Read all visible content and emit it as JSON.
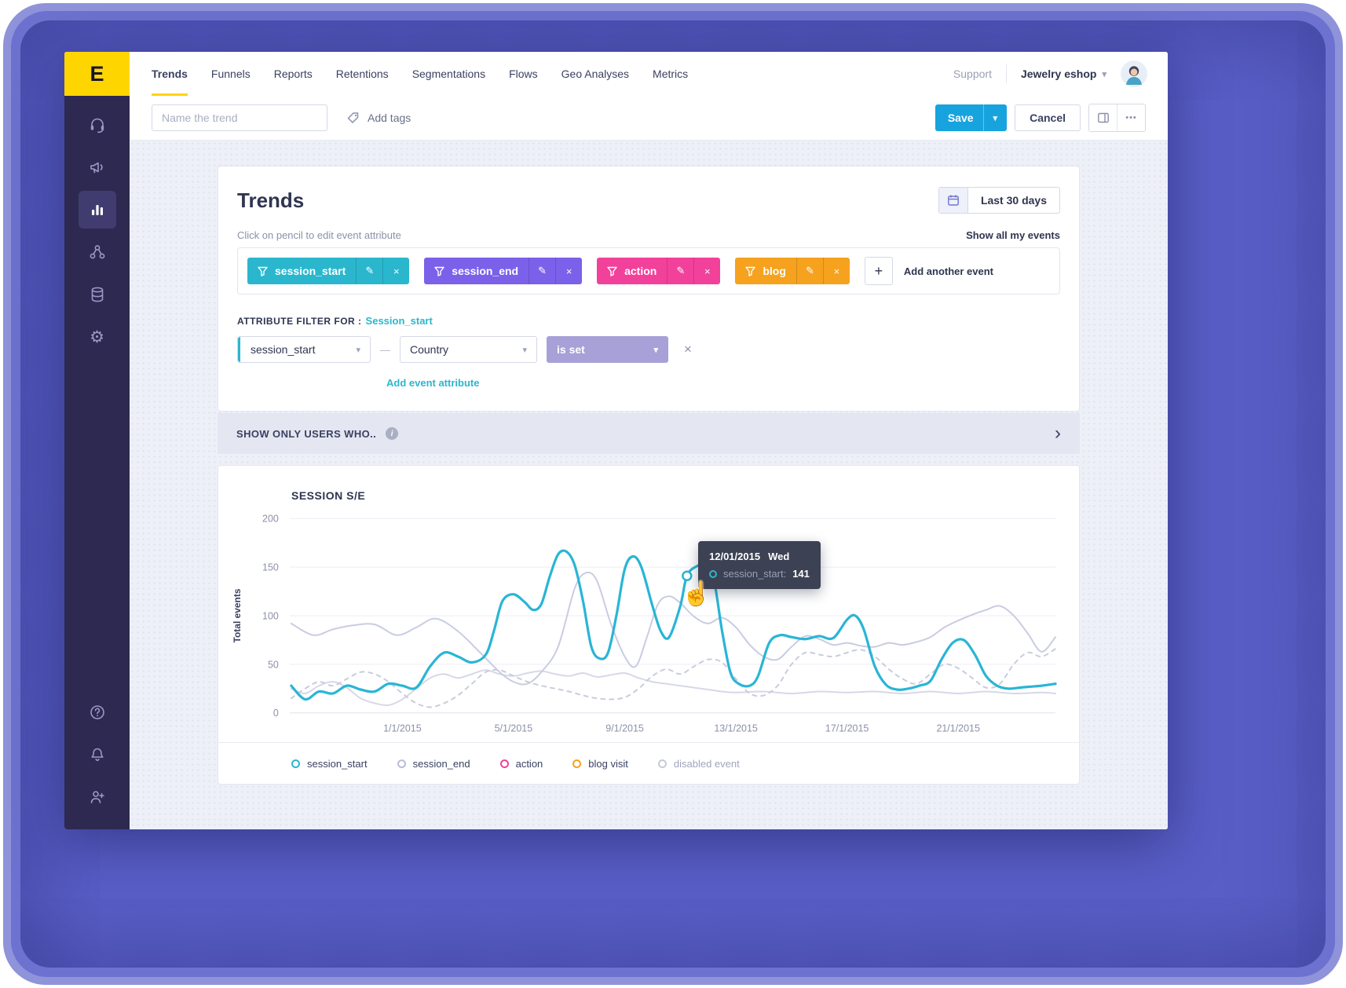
{
  "nav": {
    "logo_letter": "E",
    "items": [
      {
        "label": "Trends",
        "active": true
      },
      {
        "label": "Funnels"
      },
      {
        "label": "Reports"
      },
      {
        "label": "Retentions"
      },
      {
        "label": "Segmentations"
      },
      {
        "label": "Flows"
      },
      {
        "label": "Geo Analyses"
      },
      {
        "label": "Metrics"
      }
    ],
    "support_label": "Support",
    "workspace": "Jewelry eshop"
  },
  "toolbar": {
    "trend_name_placeholder": "Name the trend",
    "add_tags_label": "Add tags",
    "save_label": "Save",
    "cancel_label": "Cancel"
  },
  "sidebar": {
    "icons": [
      "headset",
      "megaphone",
      "bar-chart",
      "segments",
      "database",
      "gear"
    ],
    "bottom_icons": [
      "help",
      "bell",
      "invite-user"
    ],
    "active_icon": "bar-chart"
  },
  "trends": {
    "title": "Trends",
    "date_range_label": "Last 30 days",
    "hint": "Click on pencil to edit event attribute",
    "show_all_label": "Show all my events",
    "events": [
      {
        "label": "session_start",
        "color": "#2ab7ce"
      },
      {
        "label": "session_end",
        "color": "#7b61ea"
      },
      {
        "label": "action",
        "color": "#f2419b"
      },
      {
        "label": "blog",
        "color": "#f6a21e"
      }
    ],
    "add_another_label": "Add another event",
    "attr_filter_label": "ATTRIBUTE FILTER FOR :",
    "attr_filter_event": "Session_start",
    "filter_event_value": "session_start",
    "filter_attribute_value": "Country",
    "filter_operator_value": "is set",
    "add_attribute_label": "Add event attribute"
  },
  "show_only": {
    "label": "SHOW ONLY USERS WHO.."
  },
  "chart": {
    "title": "SESSION S/E",
    "legend": [
      {
        "label": "session_start",
        "color": "#2ab7ce",
        "muted": false
      },
      {
        "label": "session_end",
        "color": "#b9bcdd",
        "muted": false
      },
      {
        "label": "action",
        "color": "#f2419b",
        "muted": false
      },
      {
        "label": "blog visit",
        "color": "#f6a21e",
        "muted": false
      },
      {
        "label": "disabled event",
        "color": "#c6c9d8",
        "muted": true
      }
    ]
  },
  "tooltip": {
    "date": "12/01/2015",
    "weekday": "Wed",
    "series_label": "session_start:",
    "value": "141",
    "color": "#2ab7ce"
  },
  "glyphs": {
    "caret_down": "▾",
    "close": "×",
    "pencil": "✎",
    "plus": "+",
    "chevron_right": "›",
    "info_letter": "i",
    "ellipsis": "•••",
    "dash": "—",
    "cursor_hand": "☝"
  },
  "chart_data": {
    "type": "line",
    "title": "SESSION S/E",
    "ylabel": "Total events",
    "ylim": [
      0,
      200
    ],
    "yticks": [
      0,
      50,
      100,
      150,
      200
    ],
    "x_range": [
      -3,
      24.5
    ],
    "x_unit": "day of January 2015",
    "xticks": [
      {
        "day": 1,
        "label": "1/1/2015"
      },
      {
        "day": 5,
        "label": "5/1/2015"
      },
      {
        "day": 9,
        "label": "9/1/2015"
      },
      {
        "day": 13,
        "label": "13/1/2015"
      },
      {
        "day": 17,
        "label": "17/1/2015"
      },
      {
        "day": 21,
        "label": "21/1/2015"
      }
    ],
    "marker": {
      "series": "session_start",
      "day": 11.24,
      "value": 141,
      "date": "12/01/2015",
      "color": "#29b5d6"
    },
    "series": [
      {
        "name": "blog visit",
        "color": "#d6d8e8",
        "width": 2,
        "dash": null,
        "points": [
          [
            -3,
            25
          ],
          [
            -2.5,
            20
          ],
          [
            -2,
            28
          ],
          [
            -1.5,
            32
          ],
          [
            -1,
            26
          ],
          [
            -0.5,
            15
          ],
          [
            0,
            10
          ],
          [
            0.5,
            8
          ],
          [
            1,
            14
          ],
          [
            1.5,
            25
          ],
          [
            2,
            36
          ],
          [
            2.5,
            40
          ],
          [
            3,
            36
          ],
          [
            3.5,
            40
          ],
          [
            4,
            44
          ],
          [
            4.5,
            40
          ],
          [
            5,
            38
          ],
          [
            5.5,
            41
          ],
          [
            6,
            43
          ],
          [
            6.5,
            40
          ],
          [
            7,
            38
          ],
          [
            7.5,
            41
          ],
          [
            8,
            37
          ],
          [
            8.5,
            39
          ],
          [
            9,
            41
          ],
          [
            9.5,
            36
          ],
          [
            10,
            32
          ],
          [
            10.5,
            30
          ],
          [
            11,
            28
          ],
          [
            11.5,
            26
          ],
          [
            12,
            24
          ],
          [
            12.5,
            22
          ],
          [
            13,
            21
          ],
          [
            14,
            22
          ],
          [
            15,
            20
          ],
          [
            16,
            22
          ],
          [
            17,
            21
          ],
          [
            18,
            22
          ],
          [
            19,
            20
          ],
          [
            20,
            22
          ],
          [
            21,
            20
          ],
          [
            22,
            22
          ],
          [
            23,
            20
          ],
          [
            24,
            21
          ],
          [
            24.5,
            20
          ]
        ]
      },
      {
        "name": "action",
        "color": "#c9ccdc",
        "width": 2,
        "dash": "5,6",
        "points": [
          [
            -3,
            15
          ],
          [
            -2.5,
            25
          ],
          [
            -2,
            32
          ],
          [
            -1.5,
            28
          ],
          [
            -1,
            35
          ],
          [
            -0.5,
            42
          ],
          [
            0,
            40
          ],
          [
            0.5,
            32
          ],
          [
            1,
            20
          ],
          [
            1.5,
            10
          ],
          [
            2,
            6
          ],
          [
            2.5,
            10
          ],
          [
            3,
            18
          ],
          [
            3.5,
            30
          ],
          [
            4,
            42
          ],
          [
            4.5,
            44
          ],
          [
            5,
            38
          ],
          [
            5.5,
            32
          ],
          [
            6,
            28
          ],
          [
            6.5,
            25
          ],
          [
            7,
            22
          ],
          [
            7.5,
            18
          ],
          [
            8,
            15
          ],
          [
            8.5,
            14
          ],
          [
            9,
            16
          ],
          [
            9.5,
            25
          ],
          [
            10,
            38
          ],
          [
            10.5,
            45
          ],
          [
            11,
            40
          ],
          [
            11.5,
            48
          ],
          [
            12,
            55
          ],
          [
            12.5,
            52
          ],
          [
            13,
            35
          ],
          [
            13.5,
            20
          ],
          [
            14,
            18
          ],
          [
            14.5,
            28
          ],
          [
            15,
            50
          ],
          [
            15.5,
            62
          ],
          [
            16,
            60
          ],
          [
            16.5,
            58
          ],
          [
            17,
            62
          ],
          [
            17.5,
            65
          ],
          [
            18,
            58
          ],
          [
            18.5,
            45
          ],
          [
            19,
            35
          ],
          [
            19.5,
            30
          ],
          [
            20,
            40
          ],
          [
            20.5,
            50
          ],
          [
            21,
            46
          ],
          [
            21.5,
            36
          ],
          [
            22,
            26
          ],
          [
            22.5,
            30
          ],
          [
            23,
            50
          ],
          [
            23.5,
            62
          ],
          [
            24,
            58
          ],
          [
            24.5,
            66
          ]
        ]
      },
      {
        "name": "session_end",
        "color": "#c9cce2",
        "width": 2,
        "dash": null,
        "points": [
          [
            -3,
            92
          ],
          [
            -2.2,
            80
          ],
          [
            -1.5,
            86
          ],
          [
            -0.8,
            90
          ],
          [
            0,
            91
          ],
          [
            0.8,
            80
          ],
          [
            1.5,
            88
          ],
          [
            2.2,
            97
          ],
          [
            3,
            84
          ],
          [
            3.8,
            62
          ],
          [
            4.5,
            42
          ],
          [
            5,
            32
          ],
          [
            5.5,
            30
          ],
          [
            6,
            42
          ],
          [
            6.6,
            68
          ],
          [
            7.2,
            128
          ],
          [
            7.6,
            144
          ],
          [
            8,
            136
          ],
          [
            8.5,
            92
          ],
          [
            9,
            58
          ],
          [
            9.4,
            48
          ],
          [
            9.8,
            78
          ],
          [
            10.2,
            112
          ],
          [
            10.6,
            120
          ],
          [
            11,
            113
          ],
          [
            11.5,
            99
          ],
          [
            12,
            92
          ],
          [
            12.5,
            98
          ],
          [
            13,
            88
          ],
          [
            13.5,
            70
          ],
          [
            14,
            58
          ],
          [
            14.5,
            55
          ],
          [
            15,
            68
          ],
          [
            15.5,
            79
          ],
          [
            16,
            76
          ],
          [
            16.5,
            70
          ],
          [
            17,
            72
          ],
          [
            17.5,
            69
          ],
          [
            18,
            68
          ],
          [
            18.5,
            72
          ],
          [
            19,
            70
          ],
          [
            19.5,
            73
          ],
          [
            20,
            78
          ],
          [
            20.5,
            88
          ],
          [
            21,
            95
          ],
          [
            21.5,
            101
          ],
          [
            22,
            106
          ],
          [
            22.5,
            110
          ],
          [
            23,
            100
          ],
          [
            23.5,
            82
          ],
          [
            24,
            63
          ],
          [
            24.5,
            78
          ]
        ]
      },
      {
        "name": "session_start",
        "color": "#29b5d6",
        "width": 3.2,
        "dash": null,
        "points": [
          [
            -3,
            28
          ],
          [
            -2.5,
            14
          ],
          [
            -2,
            22
          ],
          [
            -1.5,
            20
          ],
          [
            -1,
            28
          ],
          [
            -0.5,
            24
          ],
          [
            0,
            22
          ],
          [
            0.5,
            30
          ],
          [
            1,
            28
          ],
          [
            1.5,
            26
          ],
          [
            2,
            48
          ],
          [
            2.5,
            62
          ],
          [
            3,
            58
          ],
          [
            3.5,
            52
          ],
          [
            4,
            60
          ],
          [
            4.3,
            85
          ],
          [
            4.6,
            115
          ],
          [
            5,
            122
          ],
          [
            5.4,
            114
          ],
          [
            5.7,
            106
          ],
          [
            6,
            112
          ],
          [
            6.3,
            140
          ],
          [
            6.6,
            163
          ],
          [
            6.9,
            166
          ],
          [
            7.2,
            152
          ],
          [
            7.5,
            115
          ],
          [
            7.8,
            68
          ],
          [
            8.1,
            56
          ],
          [
            8.4,
            62
          ],
          [
            8.7,
            100
          ],
          [
            9,
            148
          ],
          [
            9.3,
            161
          ],
          [
            9.6,
            150
          ],
          [
            10,
            110
          ],
          [
            10.3,
            84
          ],
          [
            10.6,
            78
          ],
          [
            11,
            110
          ],
          [
            11.24,
            141
          ],
          [
            11.6,
            151
          ],
          [
            11.9,
            152
          ],
          [
            12.2,
            138
          ],
          [
            12.5,
            85
          ],
          [
            12.8,
            42
          ],
          [
            13.1,
            30
          ],
          [
            13.5,
            28
          ],
          [
            13.8,
            38
          ],
          [
            14.2,
            72
          ],
          [
            14.6,
            80
          ],
          [
            15,
            78
          ],
          [
            15.5,
            76
          ],
          [
            16,
            79
          ],
          [
            16.5,
            77
          ],
          [
            17,
            96
          ],
          [
            17.3,
            100
          ],
          [
            17.6,
            86
          ],
          [
            18,
            48
          ],
          [
            18.4,
            29
          ],
          [
            18.8,
            24
          ],
          [
            19.2,
            25
          ],
          [
            19.6,
            28
          ],
          [
            20,
            33
          ],
          [
            20.4,
            55
          ],
          [
            20.8,
            72
          ],
          [
            21.2,
            75
          ],
          [
            21.6,
            60
          ],
          [
            22,
            38
          ],
          [
            22.4,
            28
          ],
          [
            22.8,
            25
          ],
          [
            23.2,
            26
          ],
          [
            23.6,
            27
          ],
          [
            24,
            28
          ],
          [
            24.5,
            30
          ]
        ]
      }
    ]
  }
}
